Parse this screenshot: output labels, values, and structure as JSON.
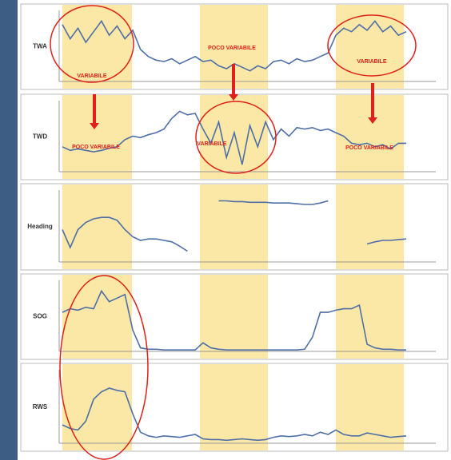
{
  "chart_data": [
    {
      "type": "line",
      "ylabel": "TWA",
      "color": "#4f6fa8",
      "xlim": [
        0,
        44
      ],
      "ylim": [
        0,
        100
      ],
      "x": [
        0,
        1,
        2,
        3,
        4,
        5,
        6,
        7,
        8,
        9,
        10,
        11,
        12,
        13,
        14,
        15,
        16,
        17,
        18,
        19,
        20,
        21,
        22,
        23,
        24,
        25,
        26,
        27,
        28,
        29,
        30,
        31,
        32,
        33,
        34,
        35,
        36,
        37,
        38,
        39,
        40,
        41,
        42,
        43,
        44
      ],
      "values": [
        80,
        60,
        75,
        55,
        70,
        85,
        65,
        78,
        60,
        72,
        45,
        35,
        30,
        28,
        32,
        25,
        30,
        35,
        28,
        30,
        22,
        18,
        25,
        20,
        15,
        22,
        18,
        28,
        30,
        25,
        32,
        28,
        30,
        35,
        40,
        65,
        75,
        70,
        80,
        72,
        85,
        70,
        78,
        65,
        70
      ],
      "annotations": [
        "VARIABILE",
        "POCO VARIABILE",
        "VARIABILE"
      ]
    },
    {
      "type": "line",
      "ylabel": "TWD",
      "color": "#4f6fa8",
      "xlim": [
        0,
        44
      ],
      "ylim": [
        0,
        100
      ],
      "x": [
        0,
        1,
        2,
        3,
        4,
        5,
        6,
        7,
        8,
        9,
        10,
        11,
        12,
        13,
        14,
        15,
        16,
        17,
        18,
        19,
        20,
        21,
        22,
        23,
        24,
        25,
        26,
        27,
        28,
        29,
        30,
        31,
        32,
        33,
        34,
        35,
        36,
        37,
        38,
        39,
        40,
        41,
        42,
        43,
        44
      ],
      "values": [
        35,
        30,
        32,
        30,
        28,
        30,
        33,
        35,
        45,
        50,
        48,
        52,
        55,
        60,
        75,
        85,
        80,
        82,
        60,
        40,
        70,
        20,
        55,
        10,
        65,
        35,
        70,
        45,
        60,
        50,
        62,
        60,
        62,
        58,
        60,
        55,
        50,
        40,
        38,
        40,
        35,
        38,
        32,
        40,
        40
      ],
      "annotations": [
        "POCO VARIABILE",
        "VARIABILE",
        "POCO VARIABILE"
      ]
    },
    {
      "type": "line",
      "ylabel": "Heading",
      "color": "#4f6fa8",
      "xlim": [
        0,
        44
      ],
      "ylim": [
        0,
        100
      ],
      "x": [
        0,
        1,
        2,
        3,
        4,
        5,
        6,
        7,
        8,
        9,
        10,
        11,
        12,
        13,
        14,
        15,
        16,
        17,
        18,
        19,
        20,
        21,
        22,
        23,
        24,
        25,
        26,
        27,
        28,
        29,
        30,
        31,
        32,
        33,
        34,
        35,
        36,
        37,
        38,
        39,
        40,
        41,
        42,
        43,
        44
      ],
      "values": [
        45,
        20,
        45,
        55,
        60,
        62,
        62,
        58,
        45,
        35,
        30,
        32,
        32,
        30,
        28,
        22,
        15,
        null,
        null,
        null,
        85,
        85,
        84,
        84,
        83,
        83,
        83,
        82,
        82,
        82,
        81,
        80,
        80,
        82,
        85,
        null,
        null,
        null,
        null,
        25,
        28,
        30,
        30,
        31,
        32
      ]
    },
    {
      "type": "line",
      "ylabel": "SOG",
      "color": "#4f6fa8",
      "xlim": [
        0,
        44
      ],
      "ylim": [
        0,
        100
      ],
      "x": [
        0,
        1,
        2,
        3,
        4,
        5,
        6,
        7,
        8,
        9,
        10,
        11,
        12,
        13,
        14,
        15,
        16,
        17,
        18,
        19,
        20,
        21,
        22,
        23,
        24,
        25,
        26,
        27,
        28,
        29,
        30,
        31,
        32,
        33,
        34,
        35,
        36,
        37,
        38,
        39,
        40,
        41,
        42,
        43,
        44
      ],
      "values": [
        55,
        60,
        58,
        62,
        60,
        85,
        70,
        75,
        80,
        30,
        5,
        3,
        3,
        2,
        2,
        2,
        2,
        2,
        12,
        5,
        3,
        2,
        2,
        2,
        2,
        2,
        2,
        2,
        2,
        2,
        2,
        3,
        20,
        55,
        55,
        58,
        60,
        60,
        65,
        10,
        5,
        3,
        3,
        2,
        2
      ]
    },
    {
      "type": "line",
      "ylabel": "RWS",
      "color": "#4f6fa8",
      "xlim": [
        0,
        44
      ],
      "ylim": [
        0,
        100
      ],
      "x": [
        0,
        1,
        2,
        3,
        4,
        5,
        6,
        7,
        8,
        9,
        10,
        11,
        12,
        13,
        14,
        15,
        16,
        17,
        18,
        19,
        20,
        21,
        22,
        23,
        24,
        25,
        26,
        27,
        28,
        29,
        30,
        31,
        32,
        33,
        34,
        35,
        36,
        37,
        38,
        39,
        40,
        41,
        42,
        43,
        44
      ],
      "values": [
        25,
        20,
        18,
        30,
        60,
        70,
        75,
        72,
        70,
        40,
        15,
        10,
        8,
        10,
        9,
        8,
        10,
        12,
        6,
        5,
        5,
        4,
        5,
        6,
        5,
        4,
        5,
        8,
        10,
        9,
        10,
        12,
        10,
        15,
        12,
        18,
        12,
        10,
        10,
        14,
        12,
        10,
        8,
        9,
        10
      ]
    }
  ]
}
